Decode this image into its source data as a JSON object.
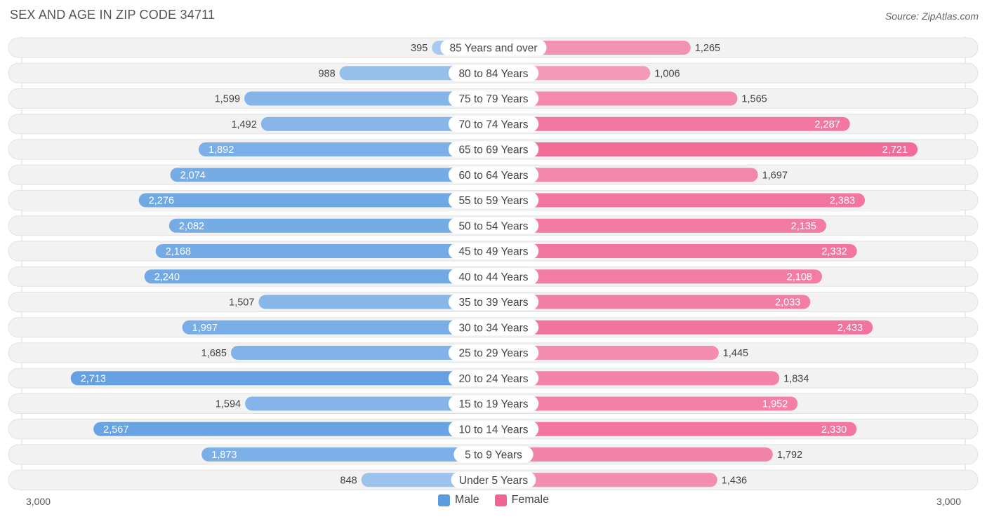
{
  "title": "SEX AND AGE IN ZIP CODE 34711",
  "source": "Source: ZipAtlas.com",
  "colors": {
    "male": "#5b9be0",
    "female": "#f06592",
    "row_bg": "#f0f0f0"
  },
  "chart_data": {
    "type": "bar",
    "orientation": "horizontal-diverging",
    "title": "SEX AND AGE IN ZIP CODE 34711",
    "categories": [
      "85 Years and over",
      "80 to 84 Years",
      "75 to 79 Years",
      "70 to 74 Years",
      "65 to 69 Years",
      "60 to 64 Years",
      "55 to 59 Years",
      "50 to 54 Years",
      "45 to 49 Years",
      "40 to 44 Years",
      "35 to 39 Years",
      "30 to 34 Years",
      "25 to 29 Years",
      "20 to 24 Years",
      "15 to 19 Years",
      "10 to 14 Years",
      "5 to 9 Years",
      "Under 5 Years"
    ],
    "series": [
      {
        "name": "Male",
        "values": [
          395,
          988,
          1599,
          1492,
          1892,
          2074,
          2276,
          2082,
          2168,
          2240,
          1507,
          1997,
          1685,
          2713,
          1594,
          2567,
          1873,
          848
        ],
        "labels": [
          "395",
          "988",
          "1,599",
          "1,492",
          "1,892",
          "2,074",
          "2,276",
          "2,082",
          "2,168",
          "2,240",
          "1,507",
          "1,997",
          "1,685",
          "2,713",
          "1,594",
          "2,567",
          "1,873",
          "848"
        ]
      },
      {
        "name": "Female",
        "values": [
          1265,
          1006,
          1565,
          2287,
          2721,
          1697,
          2383,
          2135,
          2332,
          2108,
          2033,
          2433,
          1445,
          1834,
          1952,
          2330,
          1792,
          1436
        ],
        "labels": [
          "1,265",
          "1,006",
          "1,565",
          "2,287",
          "2,721",
          "1,697",
          "2,383",
          "2,135",
          "2,332",
          "2,108",
          "2,033",
          "2,433",
          "1,445",
          "1,834",
          "1,952",
          "2,330",
          "1,792",
          "1,436"
        ]
      }
    ],
    "axis_max": 3000,
    "axis_left_label": "3,000",
    "axis_right_label": "3,000",
    "legend": {
      "placement": "bottom-center",
      "items": [
        "Male",
        "Female"
      ]
    }
  }
}
